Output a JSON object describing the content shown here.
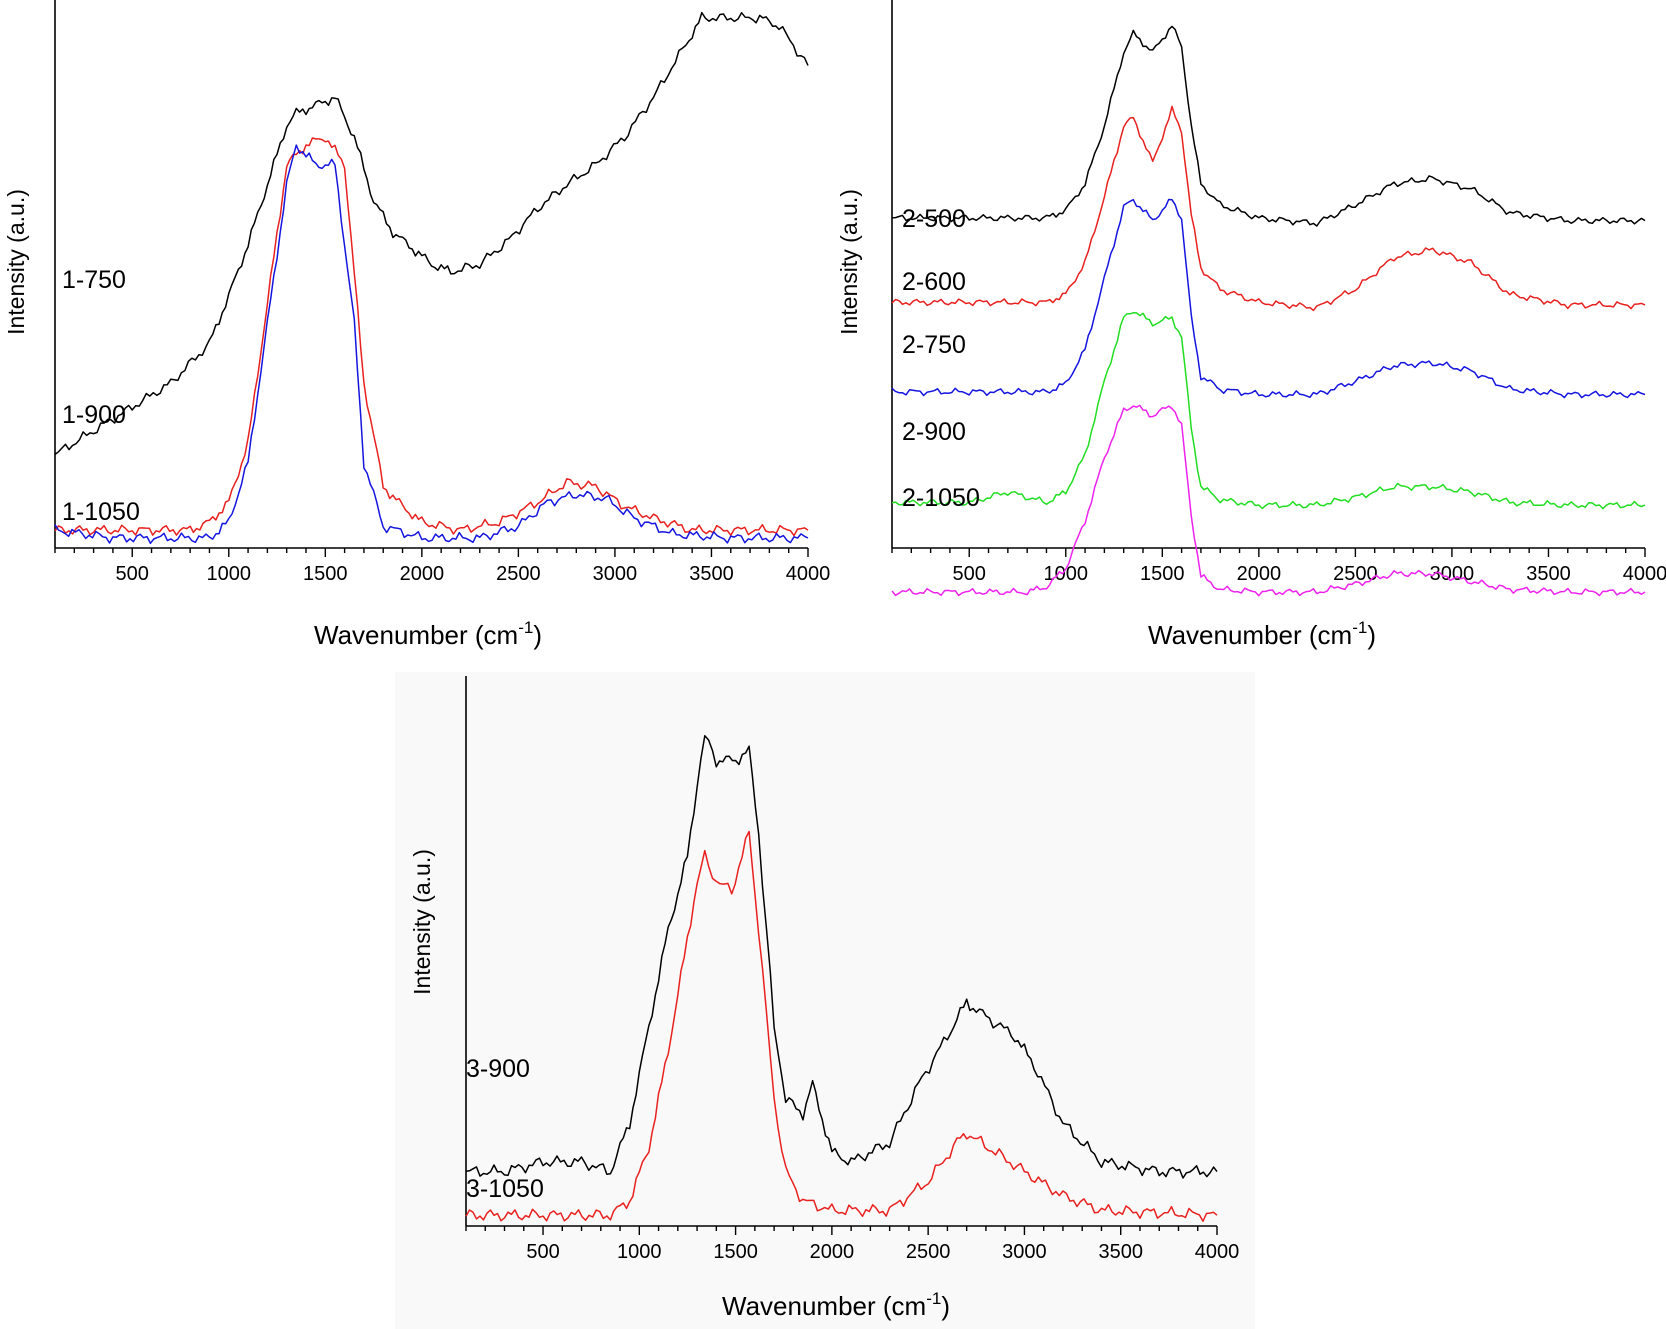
{
  "figure": {
    "panels": [
      {
        "id": "panel-1",
        "xlabel_main": "Wavenumber (cm",
        "xlabel_sup": "-1",
        "xlabel_tail": ")",
        "ylabel": "Intensity (a.u.)"
      },
      {
        "id": "panel-2",
        "xlabel_main": "Wavenumber (cm",
        "xlabel_sup": "-1",
        "xlabel_tail": ")",
        "ylabel": "Intensity (a.u.)"
      },
      {
        "id": "panel-3",
        "xlabel_main": "Wavenumber (cm",
        "xlabel_sup": "-1",
        "xlabel_tail": ")",
        "ylabel": "Intensity (a.u.)"
      }
    ]
  },
  "chart_data": [
    {
      "type": "line",
      "xlim": [
        100,
        4000
      ],
      "xticks": [
        500,
        1000,
        1500,
        2000,
        2500,
        3000,
        3500,
        4000
      ],
      "xlabel": "Wavenumber (cm-1)",
      "ylabel": "Intensity (a.u.)",
      "yticks": "none",
      "series": [
        {
          "name": "1-750",
          "color": "#000000",
          "x": [
            100,
            300,
            500,
            700,
            900,
            1000,
            1100,
            1200,
            1300,
            1350,
            1450,
            1550,
            1650,
            1750,
            1850,
            1950,
            2050,
            2150,
            2300,
            2450,
            2600,
            2750,
            2900,
            3050,
            3200,
            3350,
            3450,
            3600,
            3750,
            3850,
            4000
          ],
          "y": [
            0.22,
            0.28,
            0.34,
            0.4,
            0.5,
            0.62,
            0.75,
            0.9,
            1.05,
            1.08,
            1.1,
            1.12,
            1.02,
            0.86,
            0.78,
            0.74,
            0.7,
            0.68,
            0.7,
            0.76,
            0.84,
            0.9,
            0.95,
            1.02,
            1.12,
            1.24,
            1.32,
            1.32,
            1.32,
            1.3,
            1.2
          ]
        },
        {
          "name": "1-900",
          "color": "#e8211f",
          "x": [
            100,
            500,
            800,
            900,
            1000,
            1100,
            1200,
            1300,
            1400,
            1500,
            1600,
            1700,
            1800,
            1900,
            2000,
            2200,
            2400,
            2600,
            2750,
            2900,
            3050,
            3200,
            3400,
            3600,
            3800,
            4000
          ],
          "y": [
            0.03,
            0.03,
            0.03,
            0.05,
            0.1,
            0.25,
            0.6,
            0.95,
            1.0,
            1.02,
            0.95,
            0.4,
            0.14,
            0.09,
            0.05,
            0.03,
            0.05,
            0.1,
            0.15,
            0.14,
            0.09,
            0.06,
            0.03,
            0.03,
            0.03,
            0.03
          ]
        },
        {
          "name": "1-1050",
          "color": "#1515e0",
          "x": [
            100,
            400,
            700,
            900,
            1000,
            1100,
            1200,
            1300,
            1350,
            1450,
            1550,
            1650,
            1700,
            1800,
            2000,
            2300,
            2500,
            2650,
            2800,
            2950,
            3100,
            3300,
            3600,
            4000
          ],
          "y": [
            0.03,
            0.01,
            0.01,
            0.01,
            0.05,
            0.2,
            0.55,
            0.9,
            1.0,
            0.95,
            0.95,
            0.55,
            0.2,
            0.04,
            0.01,
            0.01,
            0.04,
            0.1,
            0.12,
            0.11,
            0.06,
            0.02,
            0.01,
            0.01
          ]
        }
      ]
    },
    {
      "type": "line",
      "xlim": [
        100,
        4000
      ],
      "xticks": [
        500,
        1000,
        1500,
        2000,
        2500,
        3000,
        3500,
        4000
      ],
      "xlabel": "Wavenumber (cm-1)",
      "ylabel": "Intensity (a.u.)",
      "yticks": "none",
      "series": [
        {
          "name": "2-500",
          "color": "#000000",
          "x": [
            100,
            500,
            900,
            1000,
            1100,
            1200,
            1300,
            1350,
            1450,
            1550,
            1600,
            1650,
            1700,
            1800,
            2000,
            2300,
            2500,
            2700,
            2900,
            3100,
            3300,
            3600,
            4000
          ],
          "y": [
            0.05,
            0.05,
            0.05,
            0.08,
            0.18,
            0.4,
            0.68,
            0.75,
            0.68,
            0.78,
            0.7,
            0.4,
            0.18,
            0.1,
            0.05,
            0.03,
            0.1,
            0.18,
            0.2,
            0.16,
            0.07,
            0.04,
            0.04
          ]
        },
        {
          "name": "2-600",
          "color": "#e8211f",
          "x": [
            100,
            500,
            900,
            1000,
            1100,
            1200,
            1300,
            1350,
            1450,
            1550,
            1600,
            1650,
            1700,
            1800,
            2000,
            2300,
            2500,
            2700,
            2900,
            3100,
            3300,
            3600,
            4000
          ],
          "y": [
            0.05,
            0.05,
            0.05,
            0.08,
            0.2,
            0.45,
            0.72,
            0.75,
            0.58,
            0.78,
            0.7,
            0.38,
            0.18,
            0.1,
            0.05,
            0.03,
            0.1,
            0.22,
            0.25,
            0.2,
            0.08,
            0.04,
            0.04
          ]
        },
        {
          "name": "2-750",
          "color": "#1515e0",
          "x": [
            100,
            500,
            900,
            1000,
            1100,
            1200,
            1300,
            1350,
            1450,
            1550,
            1600,
            1650,
            1700,
            1800,
            2000,
            2300,
            2500,
            2700,
            2900,
            3100,
            3300,
            3600,
            4000
          ],
          "y": [
            0.02,
            0.02,
            0.02,
            0.05,
            0.18,
            0.45,
            0.72,
            0.75,
            0.67,
            0.75,
            0.68,
            0.3,
            0.08,
            0.03,
            0.01,
            0.01,
            0.06,
            0.12,
            0.13,
            0.1,
            0.03,
            0.01,
            0.01
          ]
        },
        {
          "name": "2-900",
          "color": "#22dd22",
          "x": [
            100,
            500,
            700,
            900,
            1000,
            1100,
            1200,
            1300,
            1350,
            1450,
            1550,
            1600,
            1650,
            1700,
            1800,
            2000,
            2300,
            2500,
            2700,
            2900,
            3100,
            3300,
            3600,
            4000
          ],
          "y": [
            0.02,
            0.02,
            0.06,
            0.02,
            0.06,
            0.2,
            0.48,
            0.72,
            0.75,
            0.7,
            0.72,
            0.65,
            0.3,
            0.08,
            0.03,
            0.01,
            0.01,
            0.04,
            0.08,
            0.08,
            0.06,
            0.02,
            0.01,
            0.01
          ]
        },
        {
          "name": "2-1050",
          "color": "#ee22ee",
          "x": [
            100,
            500,
            800,
            900,
            1000,
            1100,
            1200,
            1300,
            1350,
            1450,
            1550,
            1600,
            1650,
            1700,
            1800,
            2000,
            2300,
            2500,
            2700,
            2900,
            3100,
            3300,
            3600,
            4000
          ],
          "y": [
            0.01,
            0.01,
            0.01,
            0.03,
            0.1,
            0.28,
            0.52,
            0.7,
            0.72,
            0.68,
            0.72,
            0.64,
            0.3,
            0.07,
            0.02,
            0.01,
            0.01,
            0.04,
            0.08,
            0.08,
            0.05,
            0.02,
            0.01,
            0.01
          ]
        }
      ]
    },
    {
      "type": "line",
      "xlim": [
        100,
        4000
      ],
      "xticks": [
        500,
        1000,
        1500,
        2000,
        2500,
        3000,
        3500,
        4000
      ],
      "xlabel": "Wavenumber (cm-1)",
      "ylabel": "Intensity (a.u.)",
      "yticks": "none",
      "series": [
        {
          "name": "3-900",
          "color": "#000000",
          "x": [
            100,
            300,
            500,
            700,
            850,
            950,
            1050,
            1150,
            1250,
            1300,
            1340,
            1400,
            1500,
            1570,
            1620,
            1700,
            1760,
            1850,
            1900,
            2000,
            2100,
            2300,
            2450,
            2600,
            2700,
            2800,
            2950,
            3050,
            3200,
            3400,
            3700,
            4000
          ],
          "y": [
            0.1,
            0.1,
            0.12,
            0.12,
            0.1,
            0.2,
            0.4,
            0.6,
            0.75,
            0.9,
            1.0,
            0.95,
            0.95,
            0.97,
            0.8,
            0.4,
            0.25,
            0.22,
            0.28,
            0.14,
            0.12,
            0.16,
            0.28,
            0.38,
            0.45,
            0.42,
            0.38,
            0.32,
            0.2,
            0.12,
            0.1,
            0.1
          ]
        },
        {
          "name": "3-1050",
          "color": "#e8211f",
          "x": [
            100,
            500,
            850,
            950,
            1050,
            1150,
            1250,
            1300,
            1340,
            1400,
            1480,
            1570,
            1620,
            1700,
            1760,
            1850,
            2000,
            2300,
            2500,
            2650,
            2700,
            2850,
            3000,
            3200,
            3400,
            4000
          ],
          "y": [
            0.01,
            0.01,
            0.01,
            0.04,
            0.15,
            0.35,
            0.58,
            0.7,
            0.75,
            0.7,
            0.68,
            0.8,
            0.6,
            0.25,
            0.1,
            0.04,
            0.02,
            0.02,
            0.08,
            0.16,
            0.18,
            0.14,
            0.1,
            0.05,
            0.02,
            0.01
          ]
        }
      ]
    }
  ]
}
